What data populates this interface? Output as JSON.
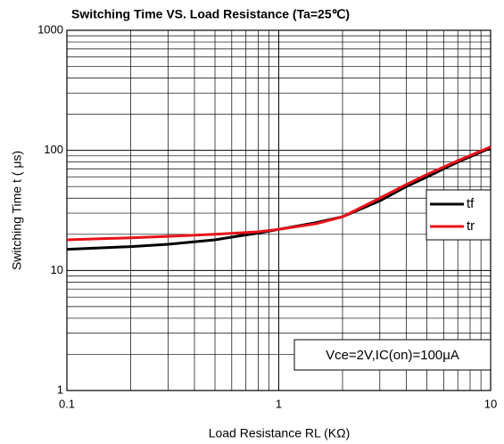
{
  "chart_data": {
    "type": "line",
    "title": "Switching Time VS. Load Resistance (Ta=25℃)",
    "xlabel": "Load Resistance RL (KΩ)",
    "ylabel": "Switching Time t ( μs)",
    "annotation": "Vce=2V,IC(on)=100μA",
    "x": [
      0.1,
      0.2,
      0.3,
      0.5,
      0.8,
      1,
      1.5,
      2,
      3,
      4,
      5,
      7,
      10
    ],
    "series": [
      {
        "name": "tf",
        "color": "#000000",
        "values": [
          15,
          15.8,
          16.5,
          18,
          20.5,
          22,
          25,
          28,
          38,
          50,
          60,
          80,
          105
        ]
      },
      {
        "name": "tr",
        "color": "#e8121a",
        "values": [
          18,
          18.7,
          19.2,
          20,
          21,
          22,
          24.5,
          28,
          40,
          52,
          63,
          82,
          107
        ]
      }
    ],
    "xlim": [
      0.1,
      10
    ],
    "xticks": [
      0.1,
      1,
      10
    ],
    "ylim": [
      1,
      1000
    ],
    "yticks": [
      1,
      10,
      100,
      1000
    ],
    "xscale": "log",
    "yscale": "log",
    "grid": true,
    "legend": "right"
  }
}
